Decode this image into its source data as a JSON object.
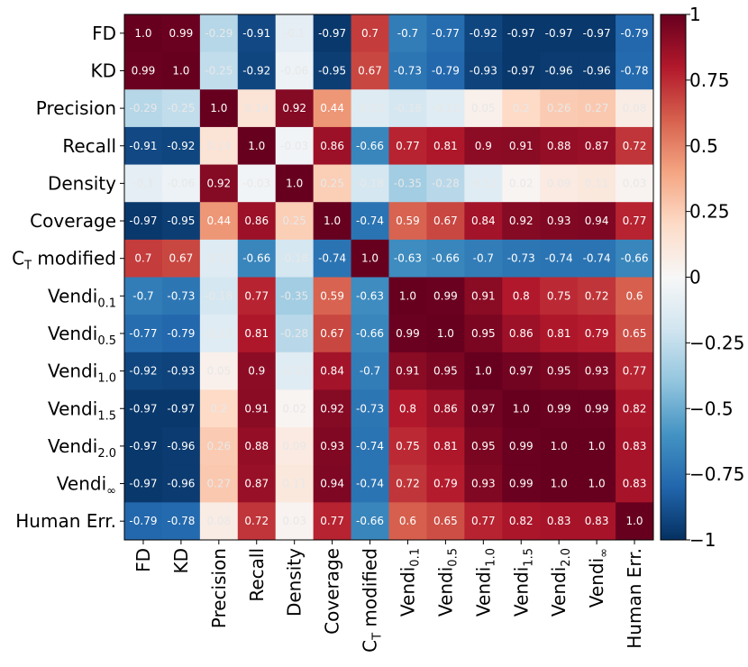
{
  "chart_data": {
    "type": "heatmap",
    "row_labels": [
      {
        "base": "FD",
        "sub": ""
      },
      {
        "base": "KD",
        "sub": ""
      },
      {
        "base": "Precision",
        "sub": ""
      },
      {
        "base": "Recall",
        "sub": ""
      },
      {
        "base": "Density",
        "sub": ""
      },
      {
        "base": "Coverage",
        "sub": ""
      },
      {
        "base": "C",
        "sub": "T",
        "suffix": " modified"
      },
      {
        "base": "Vendi",
        "sub": "0.1"
      },
      {
        "base": "Vendi",
        "sub": "0.5"
      },
      {
        "base": "Vendi",
        "sub": "1.0"
      },
      {
        "base": "Vendi",
        "sub": "1.5"
      },
      {
        "base": "Vendi",
        "sub": "2.0"
      },
      {
        "base": "Vendi",
        "sub": "∞"
      },
      {
        "base": "Human Err.",
        "sub": ""
      }
    ],
    "col_labels": [
      {
        "base": "FD",
        "sub": ""
      },
      {
        "base": "KD",
        "sub": ""
      },
      {
        "base": "Precision",
        "sub": ""
      },
      {
        "base": "Recall",
        "sub": ""
      },
      {
        "base": "Density",
        "sub": ""
      },
      {
        "base": "Coverage",
        "sub": ""
      },
      {
        "base": "C",
        "sub": "T",
        "suffix": " modified"
      },
      {
        "base": "Vendi",
        "sub": "0.1"
      },
      {
        "base": "Vendi",
        "sub": "0.5"
      },
      {
        "base": "Vendi",
        "sub": "1.0"
      },
      {
        "base": "Vendi",
        "sub": "1.5"
      },
      {
        "base": "Vendi",
        "sub": "2.0"
      },
      {
        "base": "Vendi",
        "sub": "∞"
      },
      {
        "base": "Human Err.",
        "sub": ""
      }
    ],
    "values": [
      [
        1.0,
        0.99,
        -0.29,
        -0.91,
        -0.1,
        -0.97,
        0.7,
        -0.7,
        -0.77,
        -0.92,
        -0.97,
        -0.97,
        -0.97,
        -0.79
      ],
      [
        0.99,
        1.0,
        -0.25,
        -0.92,
        -0.06,
        -0.95,
        0.67,
        -0.73,
        -0.79,
        -0.93,
        -0.97,
        -0.96,
        -0.96,
        -0.78
      ],
      [
        -0.29,
        -0.25,
        1.0,
        0.14,
        0.92,
        0.44,
        -0.13,
        -0.18,
        -0.12,
        0.05,
        0.2,
        0.26,
        0.27,
        0.08
      ],
      [
        -0.91,
        -0.92,
        0.14,
        1.0,
        -0.03,
        0.86,
        -0.66,
        0.77,
        0.81,
        0.9,
        0.91,
        0.88,
        0.87,
        0.72
      ],
      [
        -0.1,
        -0.06,
        0.92,
        -0.03,
        1.0,
        0.25,
        -0.18,
        -0.35,
        -0.28,
        -0.12,
        0.02,
        0.09,
        0.11,
        0.03
      ],
      [
        -0.97,
        -0.95,
        0.44,
        0.86,
        0.25,
        1.0,
        -0.74,
        0.59,
        0.67,
        0.84,
        0.92,
        0.93,
        0.94,
        0.77
      ],
      [
        0.7,
        0.67,
        -0.13,
        -0.66,
        -0.18,
        -0.74,
        1.0,
        -0.63,
        -0.66,
        -0.7,
        -0.73,
        -0.74,
        -0.74,
        -0.66
      ],
      [
        -0.7,
        -0.73,
        -0.18,
        0.77,
        -0.35,
        0.59,
        -0.63,
        1.0,
        0.99,
        0.91,
        0.8,
        0.75,
        0.72,
        0.6
      ],
      [
        -0.77,
        -0.79,
        -0.12,
        0.81,
        -0.28,
        0.67,
        -0.66,
        0.99,
        1.0,
        0.95,
        0.86,
        0.81,
        0.79,
        0.65
      ],
      [
        -0.92,
        -0.93,
        0.05,
        0.9,
        -0.12,
        0.84,
        -0.7,
        0.91,
        0.95,
        1.0,
        0.97,
        0.95,
        0.93,
        0.77
      ],
      [
        -0.97,
        -0.97,
        0.2,
        0.91,
        0.02,
        0.92,
        -0.73,
        0.8,
        0.86,
        0.97,
        1.0,
        0.99,
        0.99,
        0.82
      ],
      [
        -0.97,
        -0.96,
        0.26,
        0.88,
        0.09,
        0.93,
        -0.74,
        0.75,
        0.81,
        0.95,
        0.99,
        1.0,
        1.0,
        0.83
      ],
      [
        -0.97,
        -0.96,
        0.27,
        0.87,
        0.11,
        0.94,
        -0.74,
        0.72,
        0.79,
        0.93,
        0.99,
        1.0,
        1.0,
        0.83
      ],
      [
        -0.79,
        -0.78,
        0.08,
        0.72,
        0.03,
        0.77,
        -0.66,
        0.6,
        0.65,
        0.77,
        0.82,
        0.83,
        0.83,
        1.0
      ]
    ],
    "colormap": "RdBu_r",
    "vmin": -1,
    "vmax": 1,
    "colorbar_ticks": [
      1,
      0.75,
      0.5,
      0.25,
      0,
      -0.25,
      -0.5,
      -0.75,
      -1
    ],
    "colorbar_tick_labels": [
      "1",
      "0.75",
      "0.5",
      "0.25",
      "0",
      "−0.25",
      "−0.5",
      "−0.75",
      "−1"
    ],
    "title": "",
    "xlabel": "",
    "ylabel": ""
  }
}
